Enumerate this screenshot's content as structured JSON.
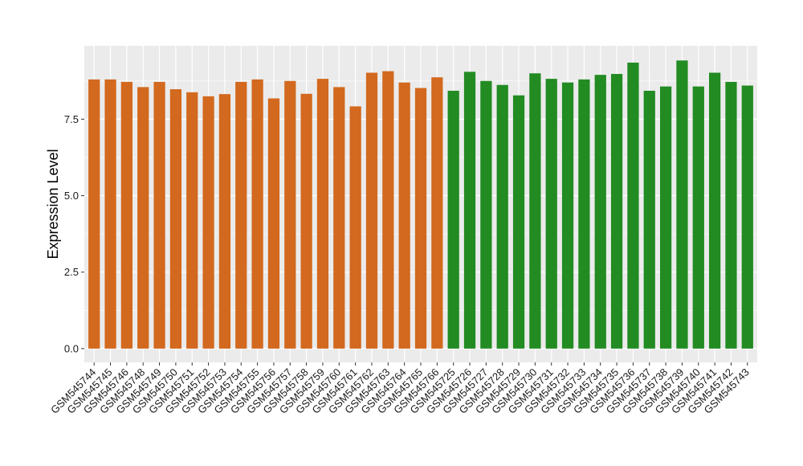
{
  "chart_data": {
    "type": "bar",
    "title": "",
    "xlabel": "",
    "ylabel": "Expression Level",
    "ylim": [
      -0.45,
      9.9
    ],
    "yticks": [
      0.0,
      2.5,
      5.0,
      7.5
    ],
    "ytick_labels": [
      "0.0",
      "2.5",
      "5.0",
      "7.5"
    ],
    "grid": true,
    "legend": "none",
    "colors": {
      "group1": "#D2691E",
      "group2": "#228B22",
      "panel": "#EBEBEB",
      "grid": "#FFFFFF"
    },
    "categories": [
      "GSM545744",
      "GSM545745",
      "GSM545746",
      "GSM545748",
      "GSM545749",
      "GSM545750",
      "GSM545751",
      "GSM545752",
      "GSM545753",
      "GSM545754",
      "GSM545755",
      "GSM545756",
      "GSM545757",
      "GSM545758",
      "GSM545759",
      "GSM545760",
      "GSM545761",
      "GSM545762",
      "GSM545763",
      "GSM545764",
      "GSM545765",
      "GSM545766",
      "GSM545725",
      "GSM545726",
      "GSM545727",
      "GSM545728",
      "GSM545729",
      "GSM545730",
      "GSM545731",
      "GSM545732",
      "GSM545733",
      "GSM545734",
      "GSM545735",
      "GSM545736",
      "GSM545737",
      "GSM545738",
      "GSM545739",
      "GSM545740",
      "GSM545741",
      "GSM545742",
      "GSM545743"
    ],
    "values": [
      8.8,
      8.8,
      8.72,
      8.55,
      8.72,
      8.48,
      8.38,
      8.25,
      8.32,
      8.72,
      8.8,
      8.18,
      8.75,
      8.33,
      8.82,
      8.55,
      7.92,
      9.02,
      9.07,
      8.7,
      8.52,
      8.87,
      8.43,
      9.05,
      8.75,
      8.62,
      8.28,
      9.0,
      8.82,
      8.7,
      8.8,
      8.95,
      8.98,
      9.35,
      8.43,
      8.57,
      9.42,
      8.57,
      9.02,
      8.72,
      8.6
    ],
    "groups": [
      1,
      1,
      1,
      1,
      1,
      1,
      1,
      1,
      1,
      1,
      1,
      1,
      1,
      1,
      1,
      1,
      1,
      1,
      1,
      1,
      1,
      1,
      2,
      2,
      2,
      2,
      2,
      2,
      2,
      2,
      2,
      2,
      2,
      2,
      2,
      2,
      2,
      2,
      2,
      2,
      2
    ]
  }
}
